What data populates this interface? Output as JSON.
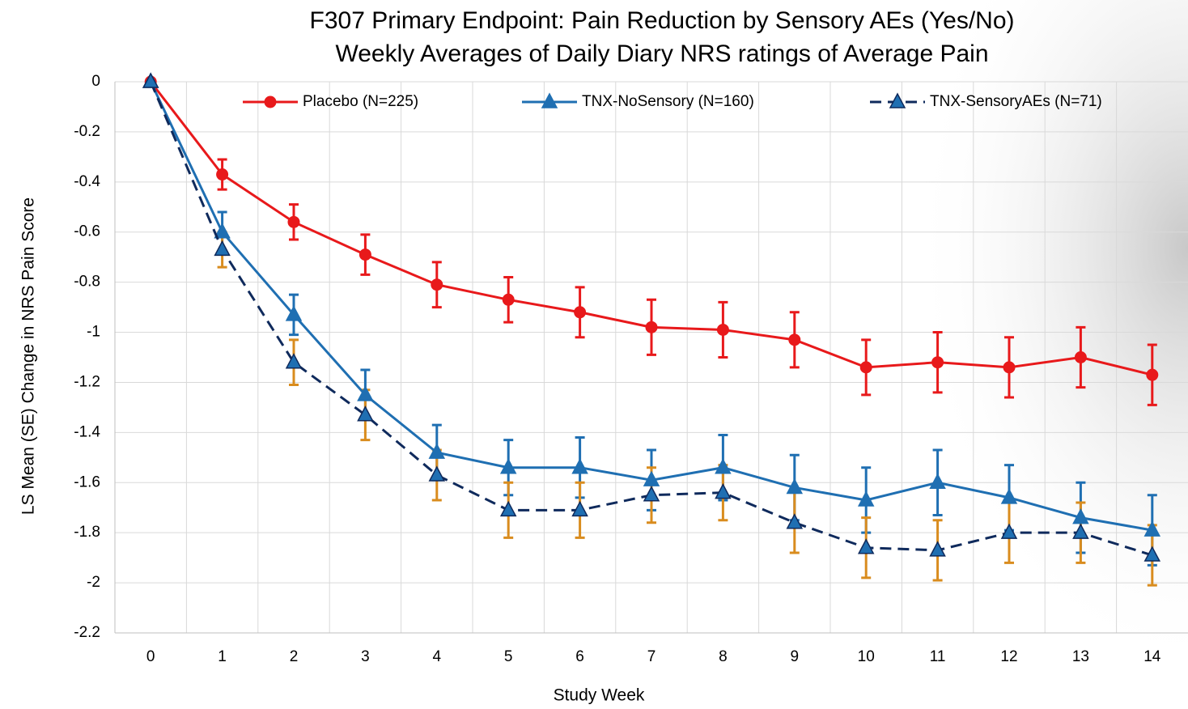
{
  "chart_data": {
    "type": "line",
    "title": "F307 Primary Endpoint: Pain Reduction by Sensory AEs (Yes/No)",
    "subtitle": "Weekly Averages of Daily Diary NRS ratings of Average Pain",
    "x_label": "Study Week",
    "y_label": "LS Mean (SE) Change in NRS Pain Score",
    "categories": [
      "0",
      "1",
      "2",
      "3",
      "4",
      "5",
      "6",
      "7",
      "8",
      "9",
      "10",
      "11",
      "12",
      "13",
      "14"
    ],
    "ylim": [
      -2.2,
      0
    ],
    "yticks": [
      0,
      -0.2,
      -0.4,
      -0.6,
      -0.8,
      -1,
      -1.2,
      -1.4,
      -1.6,
      -1.8,
      -2,
      -2.2
    ],
    "grid": true,
    "legend": "top",
    "series": [
      {
        "name": "Placebo (N=225)",
        "color": "#e8191b",
        "marker": "circle",
        "dash": false,
        "error_color": "#e8191b",
        "values": [
          0,
          -0.37,
          -0.56,
          -0.69,
          -0.81,
          -0.87,
          -0.92,
          -0.98,
          -0.99,
          -1.03,
          -1.14,
          -1.12,
          -1.14,
          -1.1,
          -1.17
        ],
        "errors": [
          0,
          0.06,
          0.07,
          0.08,
          0.09,
          0.09,
          0.1,
          0.11,
          0.11,
          0.11,
          0.11,
          0.12,
          0.12,
          0.12,
          0.12
        ]
      },
      {
        "name": "TNX-NoSensory (N=160)",
        "color": "#1f6fb2",
        "marker": "triangle",
        "dash": false,
        "error_color": "#1f6fb2",
        "values": [
          0,
          -0.6,
          -0.93,
          -1.25,
          -1.48,
          -1.54,
          -1.54,
          -1.59,
          -1.54,
          -1.62,
          -1.67,
          -1.6,
          -1.66,
          -1.74,
          -1.79
        ],
        "errors": [
          0,
          0.08,
          0.08,
          0.1,
          0.11,
          0.11,
          0.12,
          0.12,
          0.13,
          0.13,
          0.13,
          0.13,
          0.13,
          0.14,
          0.14
        ]
      },
      {
        "name": "TNX-SensoryAEs (N=71)",
        "color": "#0f2a5c",
        "marker_fill": "#1f6fb2",
        "marker": "triangle",
        "dash": true,
        "error_color": "#d98c1e",
        "values": [
          0,
          -0.67,
          -1.12,
          -1.33,
          -1.57,
          -1.71,
          -1.71,
          -1.65,
          -1.64,
          -1.76,
          -1.86,
          -1.87,
          -1.8,
          -1.8,
          -1.89
        ],
        "errors": [
          0,
          0.07,
          0.09,
          0.1,
          0.1,
          0.11,
          0.11,
          0.11,
          0.11,
          0.12,
          0.12,
          0.12,
          0.12,
          0.12,
          0.12
        ]
      }
    ]
  }
}
